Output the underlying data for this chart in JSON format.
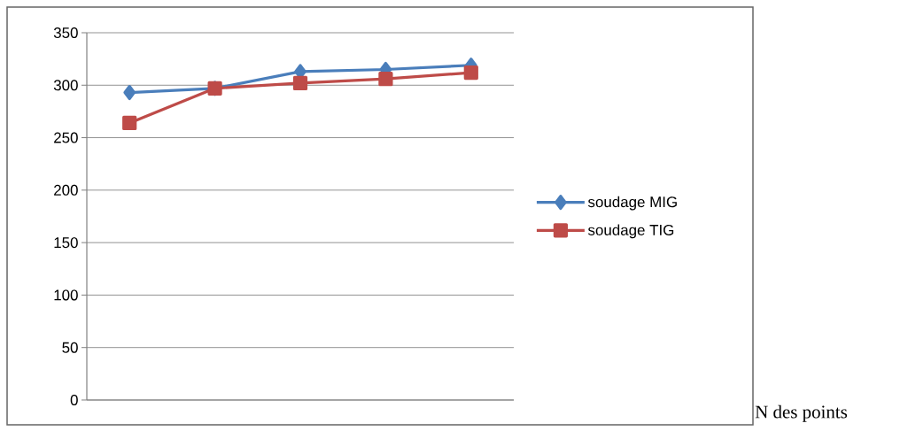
{
  "chart_data": {
    "type": "line",
    "annotations": [
      "N des points"
    ],
    "categories": [
      null,
      null,
      null,
      null,
      null
    ],
    "series": [
      {
        "name": "soudage MIG",
        "color": "#4a7ebb",
        "marker": "diamond",
        "values": [
          293,
          297,
          313,
          315,
          319
        ]
      },
      {
        "name": "soudage TIG",
        "color": "#be4b48",
        "marker": "square",
        "values": [
          264,
          297,
          302,
          306,
          312
        ]
      }
    ],
    "ylim": [
      0,
      350
    ],
    "yticks": [
      0,
      50,
      100,
      150,
      200,
      250,
      300,
      350
    ],
    "grid": "y",
    "legend": "right"
  }
}
